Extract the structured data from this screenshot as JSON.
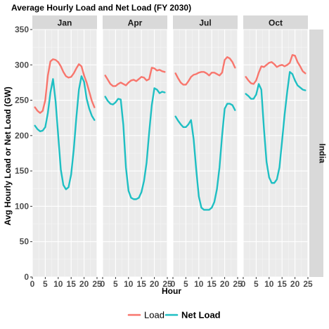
{
  "chart_data": {
    "type": "line",
    "title": "Average Hourly Load and Net Load (FY 2030)",
    "xlabel": "Hour",
    "ylabel": "Avg Hourly Load or Net Load (GW)",
    "xlim": [
      0,
      25
    ],
    "ylim": [
      0,
      350
    ],
    "x_ticks": [
      0,
      5,
      10,
      15,
      20,
      25
    ],
    "y_ticks": [
      0,
      50,
      100,
      150,
      200,
      250,
      300,
      350
    ],
    "grid": true,
    "legend_position": "bottom",
    "facet_row_label": "India",
    "x": [
      1,
      2,
      3,
      4,
      5,
      6,
      7,
      8,
      9,
      10,
      11,
      12,
      13,
      14,
      15,
      16,
      17,
      18,
      19,
      20,
      21,
      22,
      23,
      24
    ],
    "panels": [
      {
        "label": "Jan",
        "series": [
          {
            "name": "Load",
            "color": "#f8766d",
            "values": [
              240,
              235,
              232,
              235,
              250,
              285,
              305,
              308,
              307,
              304,
              298,
              290,
              284,
              282,
              283,
              288,
              295,
              301,
              298,
              285,
              275,
              262,
              249,
              240
            ]
          },
          {
            "name": "Net Load",
            "color": "#1fbfc3",
            "values": [
              214,
              209,
              206,
              207,
              212,
              232,
              261,
              280,
              248,
              200,
              152,
              130,
              124,
              127,
              145,
              180,
              225,
              265,
              284,
              276,
              252,
              238,
              228,
              222
            ]
          }
        ]
      },
      {
        "label": "Apr",
        "series": [
          {
            "name": "Load",
            "color": "#f8766d",
            "values": [
              285,
              279,
              273,
              270,
              270,
              273,
              275,
              273,
              271,
              275,
              278,
              279,
              277,
              280,
              283,
              282,
              278,
              280,
              296,
              295,
              292,
              293,
              291,
              290
            ]
          },
          {
            "name": "Net Load",
            "color": "#1fbfc3",
            "values": [
              255,
              249,
              245,
              244,
              247,
              252,
              251,
              215,
              155,
              122,
              112,
              110,
              110,
              112,
              120,
              136,
              162,
              205,
              243,
              267,
              265,
              260,
              262,
              261
            ]
          }
        ]
      },
      {
        "label": "Jul",
        "series": [
          {
            "name": "Load",
            "color": "#f8766d",
            "values": [
              288,
              281,
              275,
              272,
              272,
              277,
              283,
              286,
              287,
              289,
              290,
              290,
              288,
              285,
              289,
              289,
              287,
              285,
              289,
              307,
              311,
              309,
              304,
              296
            ]
          },
          {
            "name": "Net Load",
            "color": "#1fbfc3",
            "values": [
              227,
              221,
              216,
              212,
              212,
              216,
              222,
              195,
              152,
              114,
              98,
              95,
              95,
              95,
              98,
              106,
              124,
              155,
              200,
              238,
              245,
              245,
              243,
              236
            ]
          }
        ]
      },
      {
        "label": "Oct",
        "series": [
          {
            "name": "Load",
            "color": "#f8766d",
            "values": [
              283,
              278,
              274,
              273,
              278,
              289,
              298,
              297,
              300,
              303,
              304,
              301,
              297,
              299,
              300,
              298,
              300,
              303,
              314,
              313,
              304,
              298,
              291,
              288
            ]
          },
          {
            "name": "Net Load",
            "color": "#1fbfc3",
            "values": [
              259,
              256,
              252,
              252,
              258,
              273,
              265,
              210,
              163,
              141,
              133,
              133,
              138,
              155,
              192,
              230,
              262,
              290,
              287,
              278,
              271,
              268,
              265,
              264
            ]
          }
        ]
      }
    ]
  }
}
